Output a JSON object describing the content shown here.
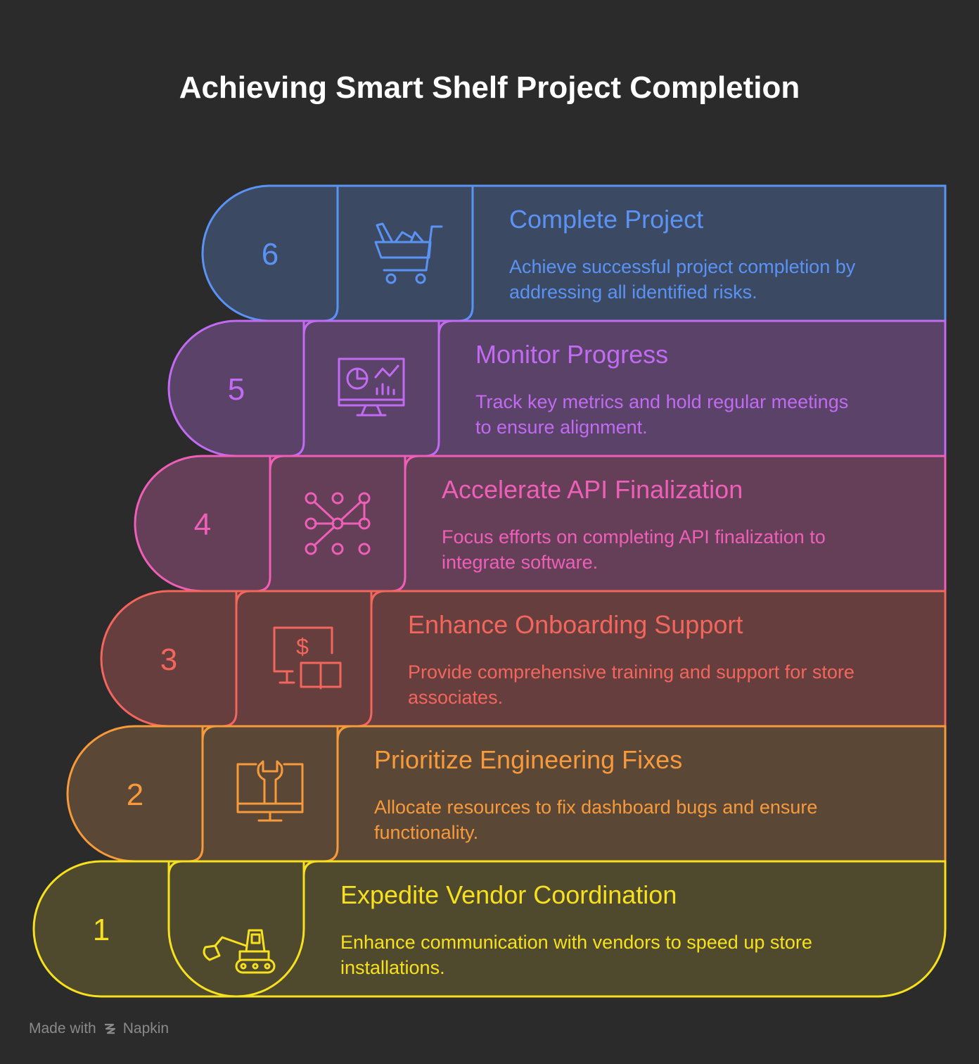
{
  "title": "Achieving Smart Shelf Project Completion",
  "steps": [
    {
      "number": "1",
      "title": "Expedite Vendor Coordination",
      "desc_lines": [
        "Enhance communication with vendors to speed up store",
        "installations."
      ],
      "icon": "excavator-icon",
      "color": "#f7e01f",
      "fill": "#4f4a2e"
    },
    {
      "number": "2",
      "title": "Prioritize Engineering Fixes",
      "desc_lines": [
        "Allocate resources to fix dashboard bugs and ensure",
        "functionality."
      ],
      "icon": "monitor-wrench-icon",
      "color": "#f79a3c",
      "fill": "#5a4736"
    },
    {
      "number": "3",
      "title": "Enhance Onboarding Support",
      "desc_lines": [
        "Provide comprehensive training and support for store",
        "associates."
      ],
      "icon": "monitor-dollar-book-icon",
      "color": "#f2665d",
      "fill": "#653e3d"
    },
    {
      "number": "4",
      "title": "Accelerate API Finalization",
      "desc_lines": [
        "Focus efforts on completing API finalization to",
        "integrate software."
      ],
      "icon": "network-nodes-icon",
      "color": "#ee5fb8",
      "fill": "#653f58"
    },
    {
      "number": "5",
      "title": "Monitor Progress",
      "desc_lines": [
        "Track key metrics and hold regular meetings",
        "to ensure alignment."
      ],
      "icon": "analytics-monitor-icon",
      "color": "#c26bf2",
      "fill": "#5a4268"
    },
    {
      "number": "6",
      "title": "Complete Project",
      "desc_lines": [
        "Achieve successful project completion by",
        "addressing all identified risks."
      ],
      "icon": "shopping-cart-icon",
      "color": "#5b93f5",
      "fill": "#3b4963"
    }
  ],
  "footer": {
    "made_with": "Made with",
    "brand": "Napkin"
  }
}
